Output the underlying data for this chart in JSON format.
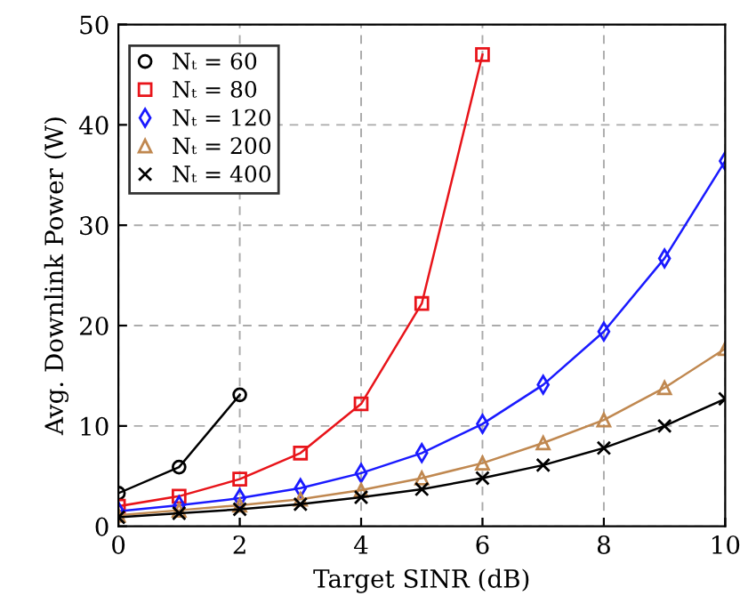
{
  "chart_data": {
    "type": "line",
    "xlabel": "Target SINR (dB)",
    "ylabel": "Avg. Downlink Power (W)",
    "x": [
      0,
      1,
      2,
      3,
      4,
      5,
      6,
      7,
      8,
      9,
      10
    ],
    "xlim": [
      0,
      10
    ],
    "xticks": [
      0,
      2,
      4,
      6,
      8,
      10
    ],
    "ylim": [
      0,
      50
    ],
    "yticks": [
      0,
      10,
      20,
      30,
      40,
      50
    ],
    "grid": true,
    "legend": "top left",
    "line_style": "solid",
    "series": [
      {
        "name": "Nₜ = 60",
        "color": "#000000",
        "marker": "circle",
        "values": [
          3.3,
          5.9,
          13.1,
          null,
          null,
          null,
          null,
          null,
          null,
          null,
          null
        ]
      },
      {
        "name": "Nₜ = 80",
        "color": "#e8141a",
        "marker": "square",
        "values": [
          2.0,
          3.0,
          4.7,
          7.3,
          12.2,
          22.2,
          47.0,
          null,
          null,
          null,
          null
        ]
      },
      {
        "name": "Nₜ = 120",
        "color": "#1a1aff",
        "marker": "diamond",
        "values": [
          1.5,
          2.1,
          2.8,
          3.8,
          5.3,
          7.3,
          10.2,
          14.1,
          19.4,
          26.7,
          36.4
        ]
      },
      {
        "name": "Nₜ = 200",
        "color": "#c08850",
        "marker": "triangle",
        "values": [
          1.1,
          1.6,
          2.1,
          2.7,
          3.6,
          4.8,
          6.3,
          8.3,
          10.6,
          13.8,
          17.7
        ]
      },
      {
        "name": "Nₜ = 400",
        "color": "#000000",
        "marker": "cross",
        "values": [
          0.9,
          1.3,
          1.7,
          2.2,
          2.9,
          3.7,
          4.8,
          6.1,
          7.8,
          10.0,
          12.7
        ]
      }
    ]
  }
}
